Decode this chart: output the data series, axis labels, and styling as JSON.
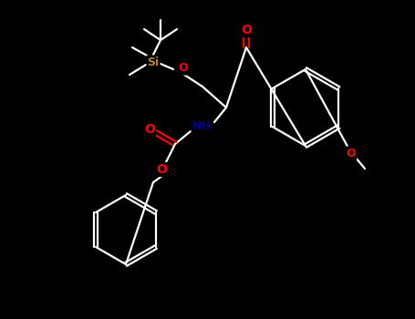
{
  "background_color": "#000000",
  "bond_color": "#ffffff",
  "atom_colors": {
    "O": "#ff0000",
    "N": "#00008b",
    "Si": "#b8860b",
    "C": "#ffffff"
  },
  "bond_width": 1.6,
  "fig_width": 4.55,
  "fig_height": 3.5,
  "dpi": 100
}
